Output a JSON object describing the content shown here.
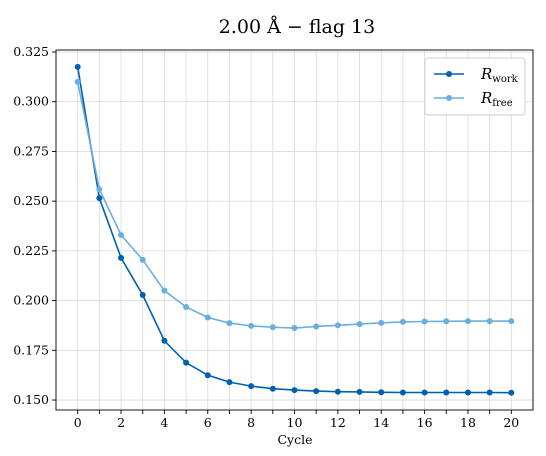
{
  "chart_data": {
    "type": "line",
    "title": "2.00 Å  −  flag 13",
    "xlabel": "Cycle",
    "ylabel": "",
    "x": [
      0,
      1,
      2,
      3,
      4,
      5,
      6,
      7,
      8,
      9,
      10,
      11,
      12,
      13,
      14,
      15,
      16,
      17,
      18,
      19,
      20
    ],
    "xlim": [
      -1,
      21
    ],
    "ylim": [
      0.145,
      0.326
    ],
    "x_ticks": [
      0,
      2,
      4,
      6,
      8,
      10,
      12,
      14,
      16,
      18,
      20
    ],
    "y_ticks": [
      "0.150",
      "0.175",
      "0.200",
      "0.225",
      "0.250",
      "0.275",
      "0.300",
      "0.325"
    ],
    "grid": true,
    "legend_position": "top-right",
    "series": [
      {
        "name": "R",
        "name_subscript": "work",
        "color": "#0060b0",
        "values": [
          0.3175,
          0.2515,
          0.2215,
          0.2028,
          0.1798,
          0.1688,
          0.1625,
          0.159,
          0.157,
          0.1557,
          0.155,
          0.1545,
          0.1542,
          0.1541,
          0.1539,
          0.1538,
          0.1538,
          0.1538,
          0.1538,
          0.1538,
          0.1537
        ]
      },
      {
        "name": "R",
        "name_subscript": "free",
        "color": "#6aaee0",
        "values": [
          0.31,
          0.256,
          0.233,
          0.2205,
          0.205,
          0.1968,
          0.1915,
          0.1887,
          0.1873,
          0.1866,
          0.1862,
          0.187,
          0.1876,
          0.1882,
          0.1888,
          0.1893,
          0.1895,
          0.1896,
          0.1897,
          0.1897,
          0.1897
        ]
      }
    ]
  }
}
